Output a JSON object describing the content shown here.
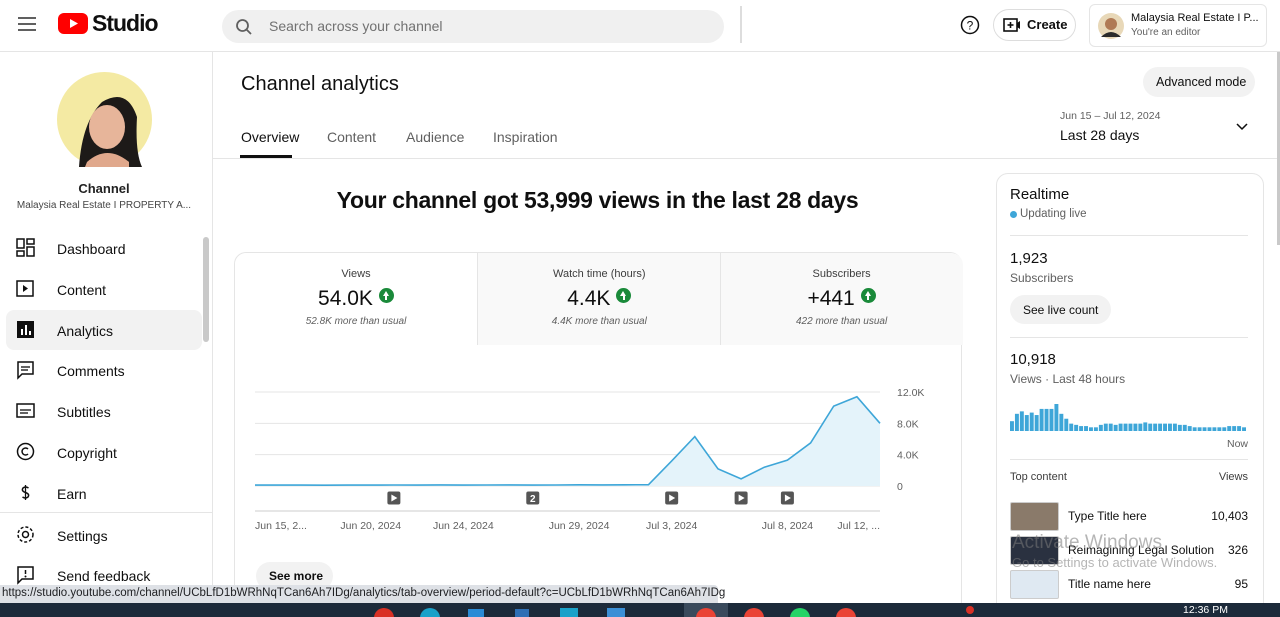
{
  "header": {
    "logo": "Studio",
    "search_placeholder": "Search across your channel",
    "create": "Create",
    "account": {
      "name": "Malaysia Real Estate I P...",
      "role": "You're an editor"
    }
  },
  "sidebar": {
    "channel_label": "Channel",
    "channel_name": "Malaysia Real Estate I PROPERTY A...",
    "nav": [
      "Dashboard",
      "Content",
      "Analytics",
      "Comments",
      "Subtitles",
      "Copyright",
      "Earn"
    ],
    "active": 2,
    "footer": [
      "Settings",
      "Send feedback"
    ]
  },
  "main": {
    "title": "Channel analytics",
    "advanced_mode": "Advanced mode",
    "tabs": [
      "Overview",
      "Content",
      "Audience",
      "Inspiration"
    ],
    "active_tab": 0,
    "date_range": "Jun 15 – Jul 12, 2024",
    "period": "Last 28 days",
    "headline": "Your channel got 53,999 views in the last 28 days",
    "see_more": "See more"
  },
  "metrics": [
    {
      "label": "Views",
      "value": "54.0K",
      "note": "52.8K more than usual"
    },
    {
      "label": "Watch time (hours)",
      "value": "4.4K",
      "note": "4.4K more than usual"
    },
    {
      "label": "Subscribers",
      "value": "+441",
      "note": "422 more than usual"
    }
  ],
  "chart_data": [
    {
      "type": "line",
      "categories": [
        "Jun 15, 2...",
        null,
        null,
        null,
        null,
        "Jun 20, 2024",
        null,
        null,
        null,
        "Jun 24, 2024",
        null,
        null,
        null,
        null,
        "Jun 29, 2024",
        null,
        null,
        null,
        "Jul 3, 2024",
        null,
        null,
        null,
        null,
        "Jul 8, 2024",
        null,
        null,
        null,
        "Jul 12, ..."
      ],
      "values": [
        120,
        110,
        110,
        100,
        110,
        120,
        130,
        120,
        140,
        120,
        130,
        140,
        120,
        130,
        150,
        140,
        150,
        170,
        3200,
        6300,
        2200,
        900,
        2400,
        3300,
        5500,
        10200,
        11400,
        8000
      ],
      "color": "#3ea6d8",
      "area_color": "#e4f3fa",
      "ylim": [
        0,
        12000
      ],
      "yticks": [
        0,
        {
          "value": 4000,
          "label": "4.0K"
        },
        {
          "value": 8000,
          "label": "8.0K"
        },
        {
          "value": 12000,
          "label": "12.0K"
        }
      ],
      "grid": true,
      "video_markers": [
        {
          "index": 6
        },
        {
          "index": 12,
          "label": "2"
        },
        {
          "index": 18
        },
        {
          "index": 21
        },
        {
          "index": 23
        }
      ]
    },
    {
      "type": "bar",
      "color": "#3ea6d8",
      "values": [
        248,
        434,
        496,
        403,
        465,
        403,
        558,
        558,
        558,
        682,
        434,
        310,
        186,
        155,
        124,
        124,
        93,
        93,
        155,
        186,
        186,
        155,
        186,
        186,
        186,
        186,
        186,
        217,
        186,
        186,
        186,
        186,
        186,
        186,
        155,
        155,
        124,
        93,
        93,
        93,
        93,
        93,
        93,
        93,
        124,
        124,
        124,
        93
      ]
    }
  ],
  "realtime": {
    "title": "Realtime",
    "status": "Updating live",
    "subscribers": "1,923",
    "subscribers_label": "Subscribers",
    "see_live": "See live count",
    "views": "10,918",
    "views_label": "Views · Last 48 hours",
    "now": "Now",
    "top_content": "Top content",
    "views_header": "Views",
    "rows": [
      {
        "title": "Type Title here",
        "views": "10,403"
      },
      {
        "title": "Reimagining Legal Solution",
        "views": "326"
      },
      {
        "title": "Title name here",
        "views": "95"
      }
    ]
  },
  "status_bar": {
    "url": "https://studio.youtube.com/channel/UCbLfD1bWRhNqTCan6Ah7IDg/analytics/tab-overview/period-default?c=UCbLfD1bWRhNqTCan6Ah7IDg"
  },
  "watermark": {
    "title": "Activate Windows",
    "text": "Go to Settings to activate Windows."
  },
  "taskbar": {
    "time": "12:36 PM"
  }
}
